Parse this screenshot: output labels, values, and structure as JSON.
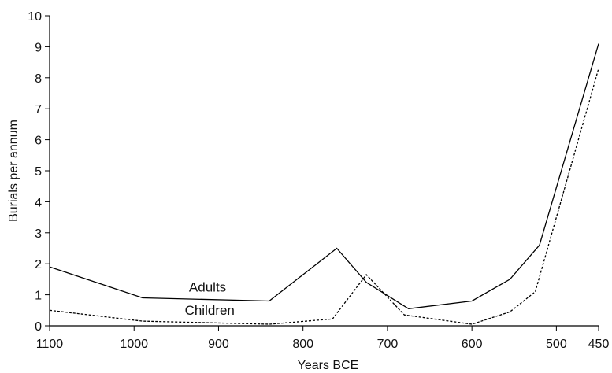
{
  "chart_data": {
    "type": "line",
    "xlabel": "Years BCE",
    "ylabel": "Burials per annum",
    "xticks": [
      1100,
      1000,
      900,
      800,
      700,
      600,
      500,
      450
    ],
    "yticks": [
      0,
      1,
      2,
      3,
      4,
      5,
      6,
      7,
      8,
      9,
      10
    ],
    "xlim": [
      1100,
      450
    ],
    "ylim": [
      0,
      10
    ],
    "grid": false,
    "series": [
      {
        "name": "Adults",
        "style": "solid",
        "color": "#000000",
        "x": [
          1100,
          990,
          840,
          760,
          725,
          675,
          600,
          555,
          520,
          450
        ],
        "y": [
          1.9,
          0.9,
          0.8,
          2.5,
          1.4,
          0.55,
          0.8,
          1.5,
          2.6,
          9.1
        ]
      },
      {
        "name": "Children",
        "style": "dotted",
        "color": "#000000",
        "x": [
          1100,
          990,
          840,
          765,
          725,
          680,
          600,
          555,
          525,
          450
        ],
        "y": [
          0.5,
          0.15,
          0.05,
          0.22,
          1.65,
          0.35,
          0.05,
          0.45,
          1.1,
          8.3
        ]
      }
    ],
    "annotations": [
      {
        "text": "Adults",
        "x": 935,
        "y": 1.05
      },
      {
        "text": "Children",
        "x": 940,
        "y": 0.3
      }
    ]
  }
}
